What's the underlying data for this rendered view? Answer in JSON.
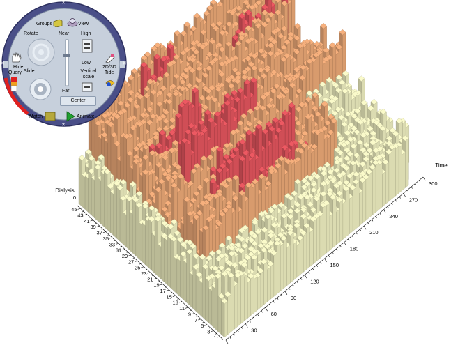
{
  "colors": {
    "high": "#e2555d",
    "mid": "#eba877",
    "low": "#eeeec0",
    "ring": "#4a4f88",
    "panel": "#c7d0dc",
    "accent_red": "#e02020"
  },
  "controls": {
    "groups_label": "Groups",
    "view_label": "View",
    "rotate_label": "Rotate",
    "near_label": "Near",
    "high_label": "High",
    "hide_label": "Hide",
    "query_label": "Query",
    "slide_label": "Slide",
    "low_label": "Low",
    "vertical_scale_label": "Vertical scale",
    "far_label": "Far",
    "mode_2d3d_label": "2D/3D",
    "tide_label": "Tide",
    "center_label": "Center",
    "match_label": "Match",
    "animate_label": "Animate",
    "icons": [
      "groups-icon",
      "view-icon",
      "hand-icon",
      "color-bar-icon",
      "rotate-dial-icon",
      "slide-dial-icon",
      "near-far-slider-icon",
      "high-scale-icon",
      "low-scale-icon",
      "mode-2d3d-icon",
      "tide-icon",
      "match-icon",
      "play-icon",
      "close-icon"
    ]
  },
  "chart_data": {
    "type": "3d-bar",
    "x_axis_label": "Time",
    "y_axis_label": "Dialysis",
    "time_ticks": [
      "30",
      "60",
      "90",
      "120",
      "150",
      "180",
      "210",
      "240",
      "270",
      "300"
    ],
    "dialysis_ticks": [
      "1",
      "3",
      "5",
      "7",
      "9",
      "11",
      "13",
      "15",
      "17",
      "19",
      "21",
      "23",
      "25",
      "27",
      "29",
      "31",
      "33",
      "35",
      "37",
      "39",
      "41",
      "43",
      "45"
    ],
    "dialysis_top_tick": "0",
    "time_range": [
      0,
      300
    ],
    "dialysis_range": [
      0,
      46
    ],
    "color_levels": [
      "low",
      "mid",
      "high"
    ]
  }
}
